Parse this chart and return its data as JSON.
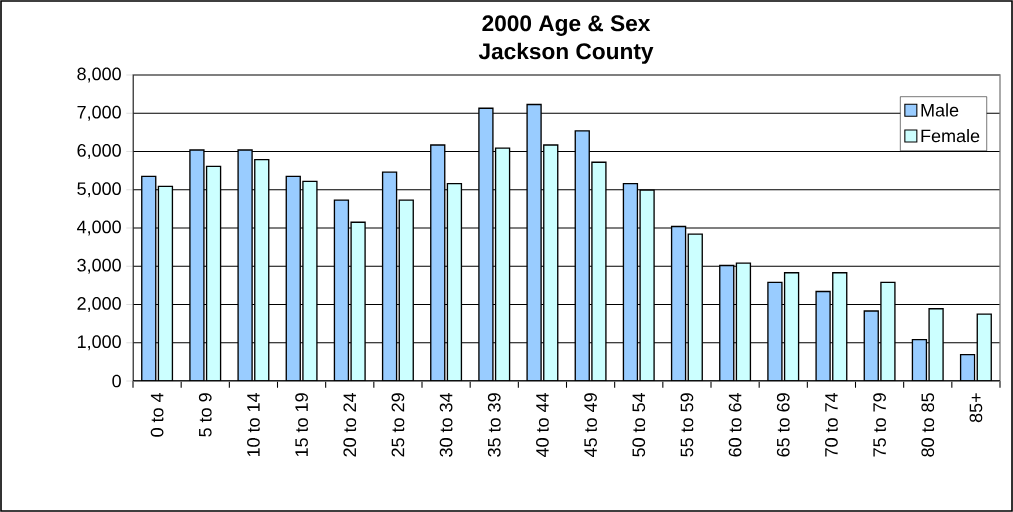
{
  "chart_data": {
    "type": "bar",
    "title": "2000 Age & Sex\nJackson County",
    "categories": [
      "0 to 4",
      "5 to 9",
      "10 to 14",
      "15 to 19",
      "20 to 24",
      "25 to 29",
      "30 to 34",
      "35 to 39",
      "40 to 44",
      "45 to 49",
      "50 to 54",
      "55 to 59",
      "60 to 64",
      "65 to 69",
      "70 to 74",
      "75 to 79",
      "80 to 85",
      "85+"
    ],
    "series": [
      {
        "name": "Male",
        "color": "#99ccff",
        "values": [
          5350,
          6040,
          6040,
          5350,
          4730,
          5460,
          6170,
          7130,
          7230,
          6540,
          5160,
          4040,
          3020,
          2580,
          2340,
          1830,
          1080,
          690
        ]
      },
      {
        "name": "Female",
        "color": "#ccffff",
        "values": [
          5090,
          5610,
          5790,
          5220,
          4150,
          4730,
          5160,
          6090,
          6170,
          5720,
          4990,
          3840,
          3080,
          2830,
          2830,
          2580,
          1890,
          1750
        ]
      }
    ],
    "ylim": [
      0,
      8000
    ],
    "yticks": [
      {
        "value": 0,
        "label": "0"
      },
      {
        "value": 1000,
        "label": "1,000"
      },
      {
        "value": 2000,
        "label": "2,000"
      },
      {
        "value": 3000,
        "label": "3,000"
      },
      {
        "value": 4000,
        "label": "4,000"
      },
      {
        "value": 5000,
        "label": "5,000"
      },
      {
        "value": 6000,
        "label": "6,000"
      },
      {
        "value": 7000,
        "label": "7,000"
      },
      {
        "value": 8000,
        "label": "8,000"
      }
    ],
    "grid": "y",
    "legend": "top right"
  }
}
